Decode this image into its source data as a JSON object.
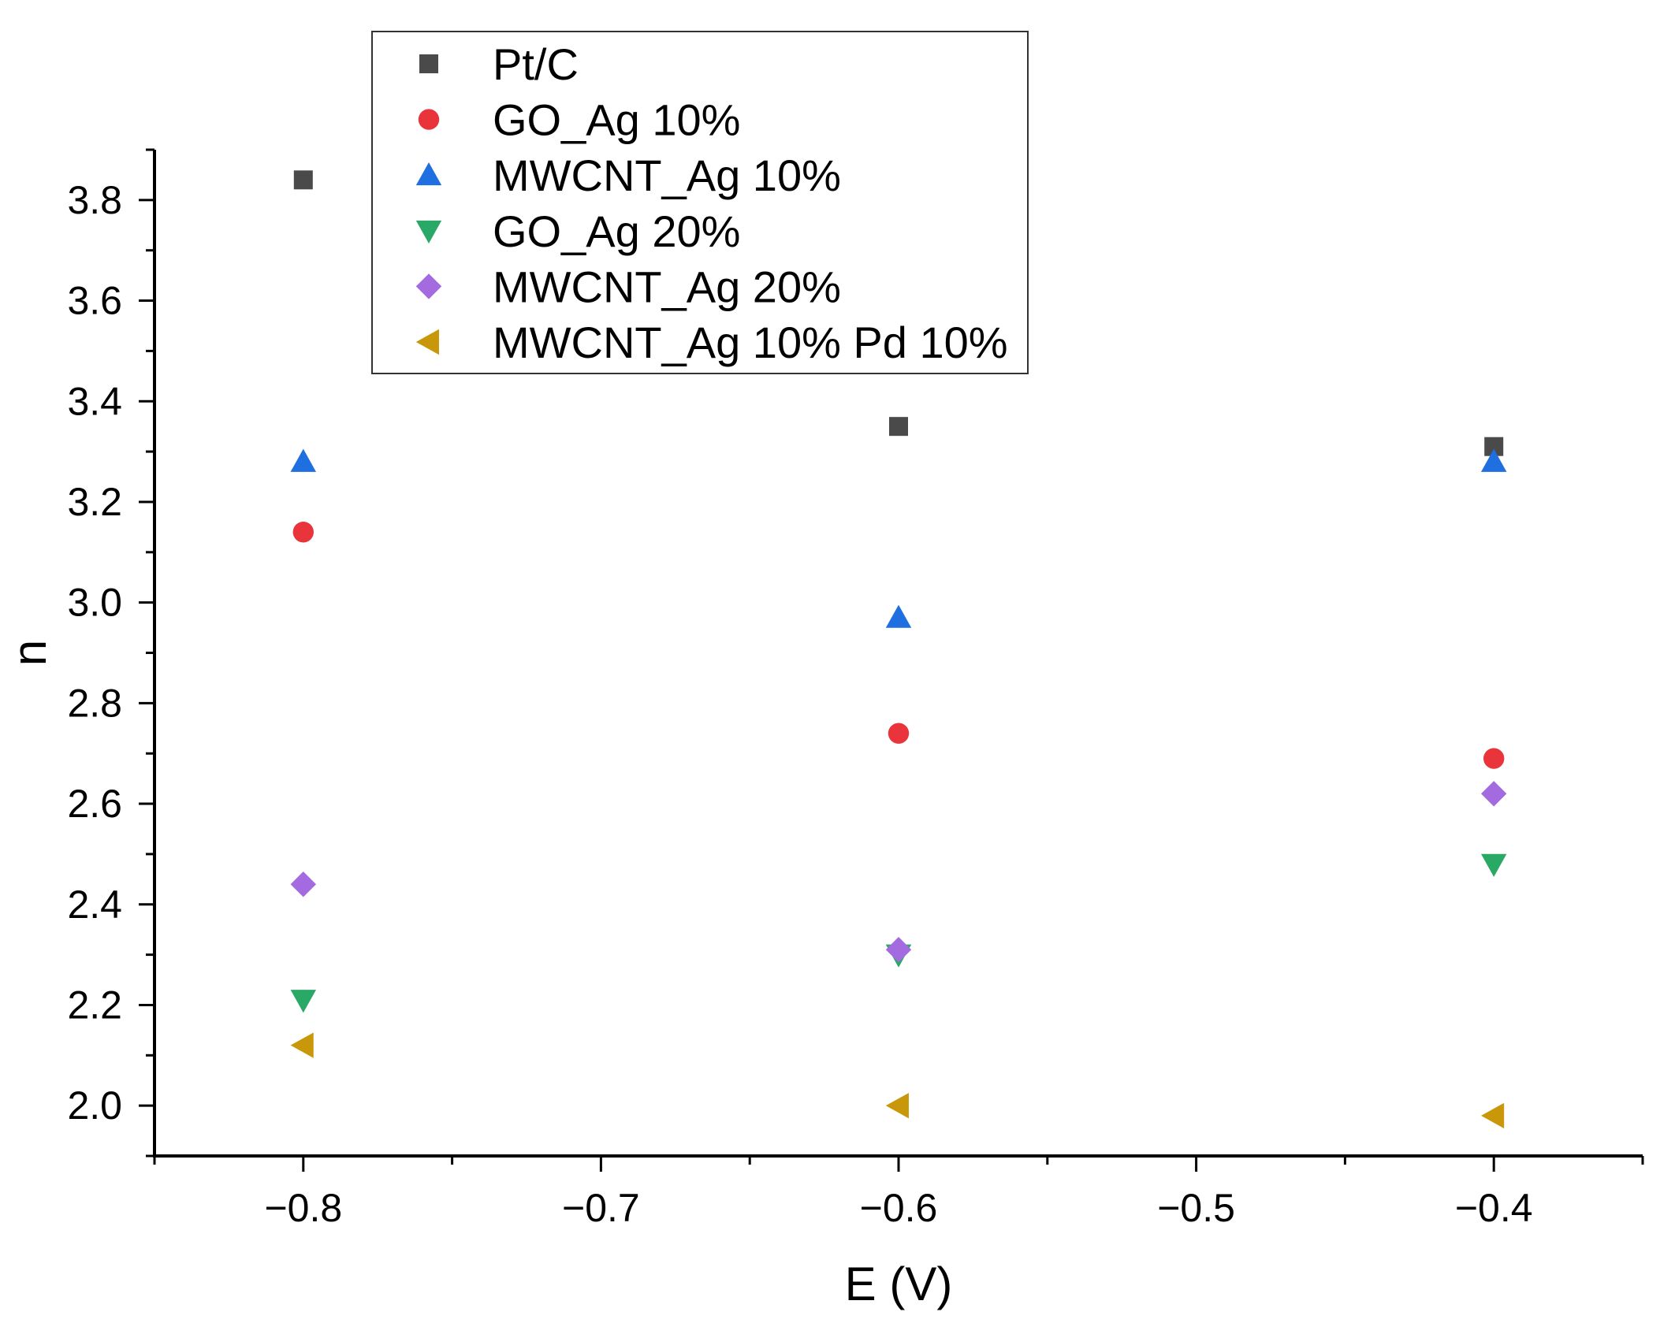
{
  "chart_data": {
    "type": "scatter",
    "title": "",
    "xlabel": "E (V)",
    "ylabel": "n",
    "xlim": [
      -0.85,
      -0.35
    ],
    "ylim": [
      1.9,
      3.9
    ],
    "grid": false,
    "legend_position": "top-left",
    "x_ticks": [
      -0.8,
      -0.7,
      -0.6,
      -0.5,
      -0.4
    ],
    "x_tick_labels": [
      "−0.8",
      "−0.7",
      "−0.6",
      "−0.5",
      "−0.4"
    ],
    "y_ticks": [
      2.0,
      2.2,
      2.4,
      2.6,
      2.8,
      3.0,
      3.2,
      3.4,
      3.6,
      3.8
    ],
    "y_tick_labels": [
      "2.0",
      "2.2",
      "2.4",
      "2.6",
      "2.8",
      "3.0",
      "3.2",
      "3.4",
      "3.6",
      "3.8"
    ],
    "series": [
      {
        "name": "Pt/C",
        "marker": "square",
        "color": "#4a4a4a",
        "x": [
          -0.8,
          -0.6,
          -0.4
        ],
        "y": [
          3.84,
          3.35,
          3.31
        ]
      },
      {
        "name": "GO_Ag 10%",
        "marker": "circle",
        "color": "#e8343a",
        "x": [
          -0.8,
          -0.6,
          -0.4
        ],
        "y": [
          3.14,
          2.74,
          2.69
        ]
      },
      {
        "name": "MWCNT_Ag 10%",
        "marker": "triangle-up",
        "color": "#1f6fe0",
        "x": [
          -0.8,
          -0.6,
          -0.4
        ],
        "y": [
          3.28,
          2.97,
          3.28
        ]
      },
      {
        "name": "GO_Ag 20%",
        "marker": "triangle-down",
        "color": "#2aa866",
        "x": [
          -0.8,
          -0.6,
          -0.4
        ],
        "y": [
          2.21,
          2.3,
          2.48
        ]
      },
      {
        "name": "MWCNT_Ag 20%",
        "marker": "diamond",
        "color": "#a46be0",
        "x": [
          -0.8,
          -0.6,
          -0.4
        ],
        "y": [
          2.44,
          2.31,
          2.62
        ]
      },
      {
        "name": "MWCNT_Ag 10% Pd 10%",
        "marker": "triangle-left",
        "color": "#c9980a",
        "x": [
          -0.8,
          -0.6,
          -0.4
        ],
        "y": [
          2.12,
          2.0,
          1.98
        ]
      }
    ]
  }
}
